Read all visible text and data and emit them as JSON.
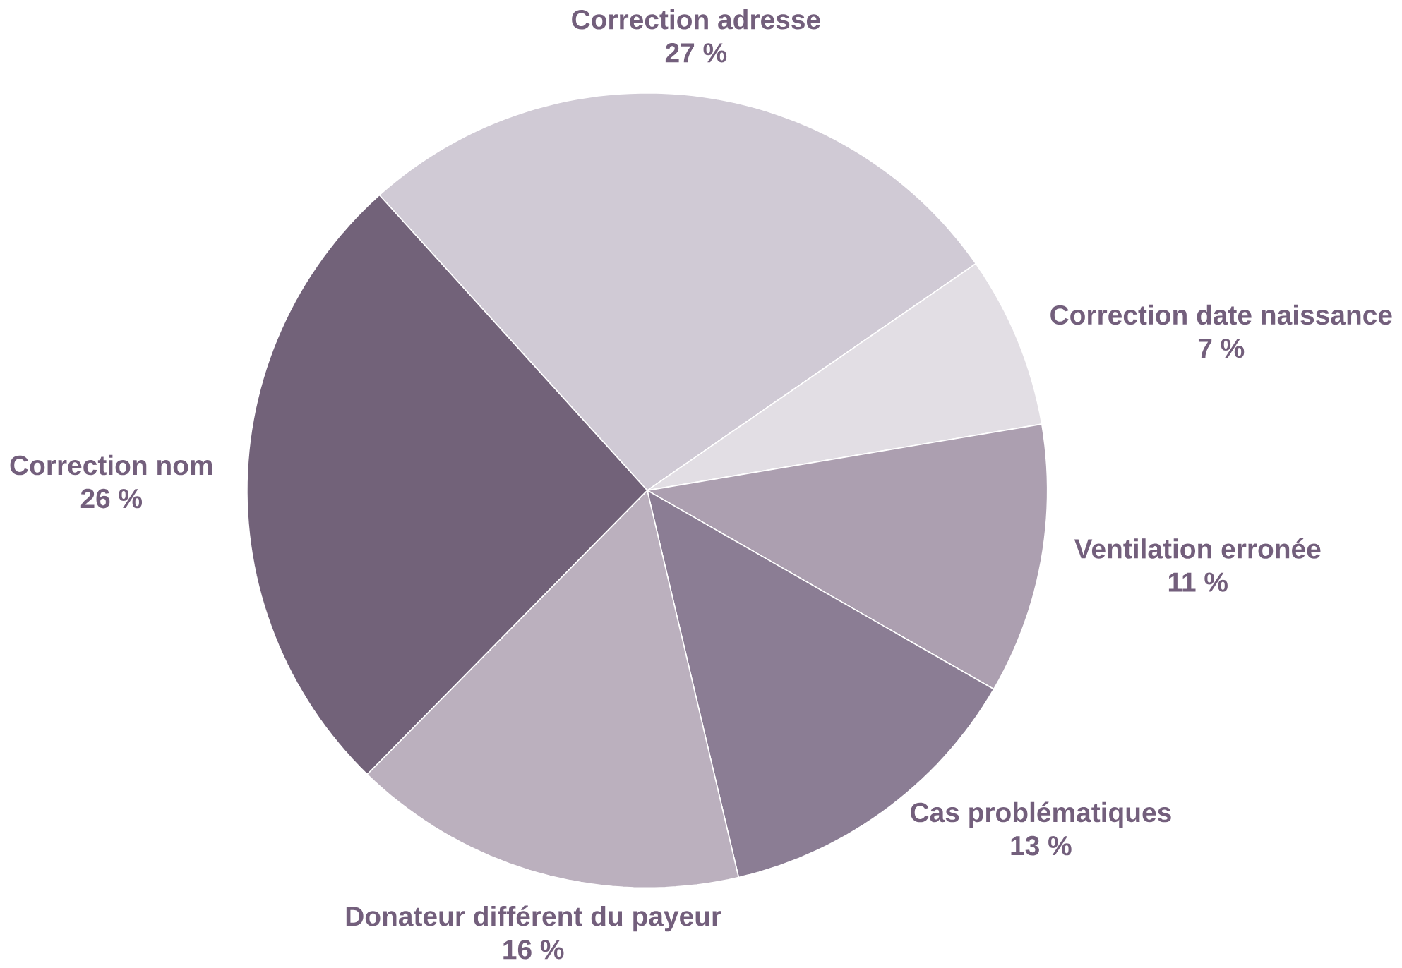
{
  "chart_data": {
    "type": "pie",
    "categories": [
      "Correction adresse",
      "Correction date naissance",
      "Ventilation erronée",
      "Cas problématiques",
      "Donateur différent du payeur",
      "Correction nom"
    ],
    "values": [
      27,
      7,
      11,
      13,
      16,
      26
    ],
    "value_labels": [
      "27 %",
      "7 %",
      "11 %",
      "13 %",
      "16 %",
      "26 %"
    ],
    "colors": [
      "#d0cad5",
      "#e2dee4",
      "#ac9fb0",
      "#8b7d94",
      "#bbb0be",
      "#726279"
    ]
  }
}
